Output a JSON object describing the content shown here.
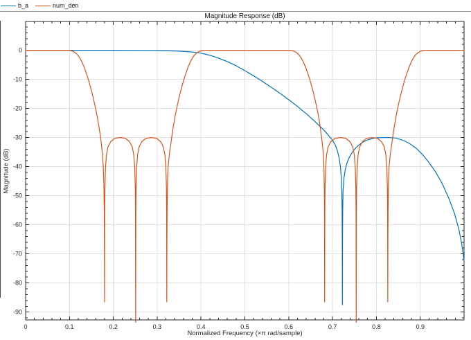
{
  "window": {
    "background": "#ffffff"
  },
  "legend": {
    "position": "top-left-bar",
    "items": [
      {
        "label": "b_a",
        "color": "#0072BD"
      },
      {
        "label": "num_den",
        "color": "#D95319"
      }
    ]
  },
  "colors": {
    "axis": "#262626",
    "grid": "#e0e0e0",
    "text": "#262626",
    "separator": "#8f8f8f",
    "series_blue": "#0072BD",
    "series_orange": "#D95319"
  },
  "chart_data": {
    "type": "line",
    "title": "Magnitude Response (dB)",
    "xlabel": "Normalized Frequency (×π rad/sample)",
    "ylabel": "Magnitude (dB)",
    "xlim": [
      0,
      1
    ],
    "ylim": [
      -92.7,
      9.9
    ],
    "grid": true,
    "x_ticks": {
      "values": [
        0,
        0.1,
        0.2,
        0.3,
        0.4,
        0.5,
        0.6,
        0.7,
        0.8,
        0.9
      ],
      "labels": [
        "0",
        "0.1",
        "0.2",
        "0.3",
        "0.4",
        "0.5",
        "0.6",
        "0.7",
        "0.8",
        "0.9"
      ]
    },
    "y_ticks": {
      "values": [
        0,
        -10,
        -20,
        -30,
        -40,
        -50,
        -60,
        -70,
        -80,
        -90
      ],
      "labels": [
        "0",
        "-10",
        "-20",
        "-30",
        "-40",
        "-50",
        "-60",
        "-70",
        "-80",
        "-90"
      ]
    },
    "x_minor_step": 0.02,
    "y_minor_step": 2,
    "series": [
      {
        "name": "b_a",
        "color": "#0072BD",
        "points": [
          [
            0,
            0
          ],
          [
            0.1,
            0
          ],
          [
            0.2,
            0
          ],
          [
            0.28,
            -0.05
          ],
          [
            0.32,
            -0.15
          ],
          [
            0.35,
            -0.3
          ],
          [
            0.38,
            -0.6
          ],
          [
            0.4,
            -1.0
          ],
          [
            0.42,
            -1.7
          ],
          [
            0.44,
            -2.7
          ],
          [
            0.46,
            -3.9
          ],
          [
            0.48,
            -5.3
          ],
          [
            0.5,
            -7.0
          ],
          [
            0.52,
            -8.8
          ],
          [
            0.54,
            -10.7
          ],
          [
            0.56,
            -12.7
          ],
          [
            0.58,
            -14.8
          ],
          [
            0.6,
            -17.0
          ],
          [
            0.62,
            -19.3
          ],
          [
            0.64,
            -21.8
          ],
          [
            0.66,
            -24.5
          ],
          [
            0.68,
            -27.4
          ],
          [
            0.69,
            -29.1
          ],
          [
            0.7,
            -31.0
          ],
          [
            0.706,
            -32.5
          ],
          [
            0.711,
            -34.5
          ],
          [
            0.715,
            -37
          ],
          [
            0.718,
            -40
          ],
          [
            0.72,
            -44
          ],
          [
            0.7212,
            -48
          ],
          [
            0.7218,
            -55
          ],
          [
            0.7222,
            -65
          ],
          [
            0.7225,
            -87.5
          ],
          [
            0.7228,
            -65
          ],
          [
            0.7232,
            -55
          ],
          [
            0.724,
            -48
          ],
          [
            0.726,
            -44
          ],
          [
            0.729,
            -41
          ],
          [
            0.733,
            -38.7
          ],
          [
            0.738,
            -36.9
          ],
          [
            0.744,
            -35.3
          ],
          [
            0.751,
            -33.9
          ],
          [
            0.759,
            -32.7
          ],
          [
            0.768,
            -31.7
          ],
          [
            0.778,
            -30.9
          ],
          [
            0.789,
            -30.4
          ],
          [
            0.8,
            -30.1
          ],
          [
            0.815,
            -30.0
          ],
          [
            0.83,
            -30.0
          ],
          [
            0.845,
            -30.2
          ],
          [
            0.86,
            -30.9
          ],
          [
            0.875,
            -32.0
          ],
          [
            0.89,
            -33.6
          ],
          [
            0.905,
            -35.8
          ],
          [
            0.92,
            -38.6
          ],
          [
            0.935,
            -41.8
          ],
          [
            0.95,
            -45.8
          ],
          [
            0.965,
            -50.8
          ],
          [
            0.978,
            -56
          ],
          [
            0.988,
            -61.5
          ],
          [
            0.994,
            -66
          ],
          [
            0.998,
            -70
          ],
          [
            1,
            -72.5
          ]
        ]
      },
      {
        "name": "num_den",
        "color": "#D95319",
        "points": [
          [
            0,
            0
          ],
          [
            0.05,
            0
          ],
          [
            0.1,
            0
          ],
          [
            0.107,
            -0.3
          ],
          [
            0.113,
            -0.8
          ],
          [
            0.118,
            -1.5
          ],
          [
            0.123,
            -2.5
          ],
          [
            0.128,
            -3.9
          ],
          [
            0.133,
            -5.6
          ],
          [
            0.138,
            -7.7
          ],
          [
            0.143,
            -10
          ],
          [
            0.148,
            -12.7
          ],
          [
            0.153,
            -15.6
          ],
          [
            0.158,
            -18.9
          ],
          [
            0.163,
            -22.6
          ],
          [
            0.168,
            -27
          ],
          [
            0.172,
            -31.2
          ],
          [
            0.175,
            -35.5
          ],
          [
            0.177,
            -40
          ],
          [
            0.1785,
            -46
          ],
          [
            0.1793,
            -55
          ],
          [
            0.1797,
            -65
          ],
          [
            0.18,
            -86.5
          ],
          [
            0.1804,
            -56
          ],
          [
            0.1809,
            -47
          ],
          [
            0.1821,
            -40.5
          ],
          [
            0.1843,
            -36
          ],
          [
            0.1878,
            -33.2
          ],
          [
            0.1942,
            -31.4
          ],
          [
            0.2031,
            -30.3
          ],
          [
            0.2155,
            -30
          ],
          [
            0.2279,
            -30.3
          ],
          [
            0.2368,
            -31.4
          ],
          [
            0.2432,
            -33.2
          ],
          [
            0.2467,
            -36
          ],
          [
            0.2489,
            -40.5
          ],
          [
            0.2501,
            -47
          ],
          [
            0.2506,
            -56
          ],
          [
            0.251,
            -94
          ],
          [
            0.2514,
            -56
          ],
          [
            0.2519,
            -47
          ],
          [
            0.2531,
            -40.5
          ],
          [
            0.2553,
            -36
          ],
          [
            0.2588,
            -33.2
          ],
          [
            0.2652,
            -31.4
          ],
          [
            0.2741,
            -30.3
          ],
          [
            0.2865,
            -30
          ],
          [
            0.2989,
            -30.3
          ],
          [
            0.3078,
            -31.4
          ],
          [
            0.3142,
            -33.2
          ],
          [
            0.3177,
            -36
          ],
          [
            0.3199,
            -40.5
          ],
          [
            0.3211,
            -47
          ],
          [
            0.3216,
            -56
          ],
          [
            0.322,
            -86.5
          ],
          [
            0.3223,
            -65
          ],
          [
            0.3227,
            -55
          ],
          [
            0.3235,
            -46
          ],
          [
            0.325,
            -40
          ],
          [
            0.328,
            -35.5
          ],
          [
            0.332,
            -31.2
          ],
          [
            0.336,
            -27
          ],
          [
            0.341,
            -22.6
          ],
          [
            0.346,
            -18.9
          ],
          [
            0.351,
            -15.6
          ],
          [
            0.356,
            -12.7
          ],
          [
            0.361,
            -10
          ],
          [
            0.366,
            -7.7
          ],
          [
            0.371,
            -5.6
          ],
          [
            0.376,
            -3.9
          ],
          [
            0.381,
            -2.5
          ],
          [
            0.386,
            -1.5
          ],
          [
            0.391,
            -0.8
          ],
          [
            0.397,
            -0.3
          ],
          [
            0.404,
            -0.1
          ],
          [
            0.41,
            0
          ],
          [
            0.5,
            0
          ],
          [
            0.605,
            0
          ],
          [
            0.612,
            -0.3
          ],
          [
            0.618,
            -0.8
          ],
          [
            0.623,
            -1.5
          ],
          [
            0.628,
            -2.5
          ],
          [
            0.633,
            -3.9
          ],
          [
            0.638,
            -5.6
          ],
          [
            0.643,
            -7.7
          ],
          [
            0.648,
            -10
          ],
          [
            0.653,
            -12.7
          ],
          [
            0.658,
            -15.6
          ],
          [
            0.663,
            -18.9
          ],
          [
            0.668,
            -22.6
          ],
          [
            0.672,
            -26.5
          ],
          [
            0.676,
            -31.2
          ],
          [
            0.679,
            -35.5
          ],
          [
            0.6805,
            -41
          ],
          [
            0.6812,
            -48
          ],
          [
            0.6817,
            -57
          ],
          [
            0.682,
            -86.5
          ],
          [
            0.6824,
            -56
          ],
          [
            0.6829,
            -47
          ],
          [
            0.6842,
            -40.5
          ],
          [
            0.6863,
            -36
          ],
          [
            0.6899,
            -33.2
          ],
          [
            0.6964,
            -31.4
          ],
          [
            0.7054,
            -30.3
          ],
          [
            0.718,
            -30
          ],
          [
            0.7306,
            -30.3
          ],
          [
            0.7396,
            -31.4
          ],
          [
            0.7461,
            -33.2
          ],
          [
            0.7497,
            -36
          ],
          [
            0.7518,
            -40.5
          ],
          [
            0.7531,
            -47
          ],
          [
            0.7536,
            -56
          ],
          [
            0.754,
            -94
          ],
          [
            0.7544,
            -56
          ],
          [
            0.7549,
            -47
          ],
          [
            0.7562,
            -40.5
          ],
          [
            0.7583,
            -36
          ],
          [
            0.7619,
            -33.2
          ],
          [
            0.7684,
            -31.4
          ],
          [
            0.7774,
            -30.3
          ],
          [
            0.79,
            -30
          ],
          [
            0.8026,
            -30.3
          ],
          [
            0.8116,
            -31.4
          ],
          [
            0.8181,
            -33.2
          ],
          [
            0.8217,
            -36
          ],
          [
            0.8238,
            -40.5
          ],
          [
            0.8251,
            -47
          ],
          [
            0.8256,
            -56
          ],
          [
            0.826,
            -86.5
          ],
          [
            0.8263,
            -65
          ],
          [
            0.8267,
            -55
          ],
          [
            0.8275,
            -46
          ],
          [
            0.829,
            -40
          ],
          [
            0.832,
            -35.5
          ],
          [
            0.836,
            -31.2
          ],
          [
            0.84,
            -27
          ],
          [
            0.845,
            -22.6
          ],
          [
            0.85,
            -18.9
          ],
          [
            0.855,
            -15.6
          ],
          [
            0.86,
            -12.7
          ],
          [
            0.865,
            -10
          ],
          [
            0.87,
            -7.7
          ],
          [
            0.875,
            -5.6
          ],
          [
            0.88,
            -3.9
          ],
          [
            0.885,
            -2.5
          ],
          [
            0.89,
            -1.5
          ],
          [
            0.895,
            -0.8
          ],
          [
            0.901,
            -0.3
          ],
          [
            0.908,
            -0.1
          ],
          [
            0.915,
            0
          ],
          [
            0.95,
            0
          ],
          [
            1,
            0
          ]
        ]
      }
    ]
  }
}
